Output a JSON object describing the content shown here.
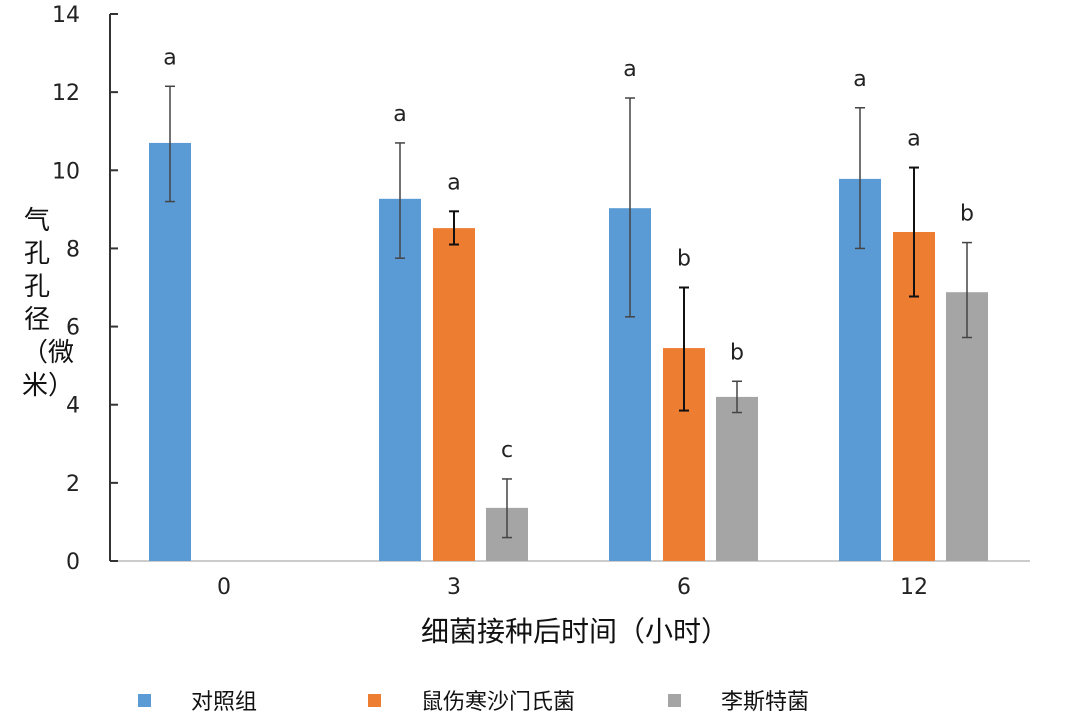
{
  "chart_data": {
    "type": "bar",
    "title": "",
    "xlabel": "细菌接种后时间（小时）",
    "ylabel": "气孔孔径（微米）",
    "categories": [
      "0",
      "3",
      "6",
      "12"
    ],
    "ylim": [
      0,
      14
    ],
    "yticks": [
      0,
      2,
      4,
      6,
      8,
      10,
      12,
      14
    ],
    "legend_position": "bottom",
    "series": [
      {
        "name": "对照组",
        "color": "#5B9BD5",
        "values": [
          10.7,
          9.27,
          9.03,
          9.78
        ],
        "err_low": [
          9.2,
          7.75,
          6.25,
          8.0
        ],
        "err_high": [
          12.15,
          10.7,
          11.85,
          11.6
        ],
        "letters": [
          "a",
          "a",
          "a",
          "a"
        ]
      },
      {
        "name": "鼠伤寒沙门氏菌",
        "color": "#ED7D31",
        "values": [
          null,
          8.52,
          5.45,
          8.42
        ],
        "err_low": [
          null,
          8.1,
          3.85,
          6.77
        ],
        "err_high": [
          null,
          8.95,
          7.0,
          10.07
        ],
        "letters": [
          null,
          "a",
          "b",
          "a"
        ]
      },
      {
        "name": "李斯特菌",
        "color": "#A5A5A5",
        "values": [
          null,
          1.36,
          4.2,
          6.88
        ],
        "err_low": [
          null,
          0.6,
          3.8,
          5.72
        ],
        "err_high": [
          null,
          2.1,
          4.6,
          8.15
        ],
        "letters": [
          null,
          "c",
          "b",
          "b"
        ]
      }
    ]
  }
}
